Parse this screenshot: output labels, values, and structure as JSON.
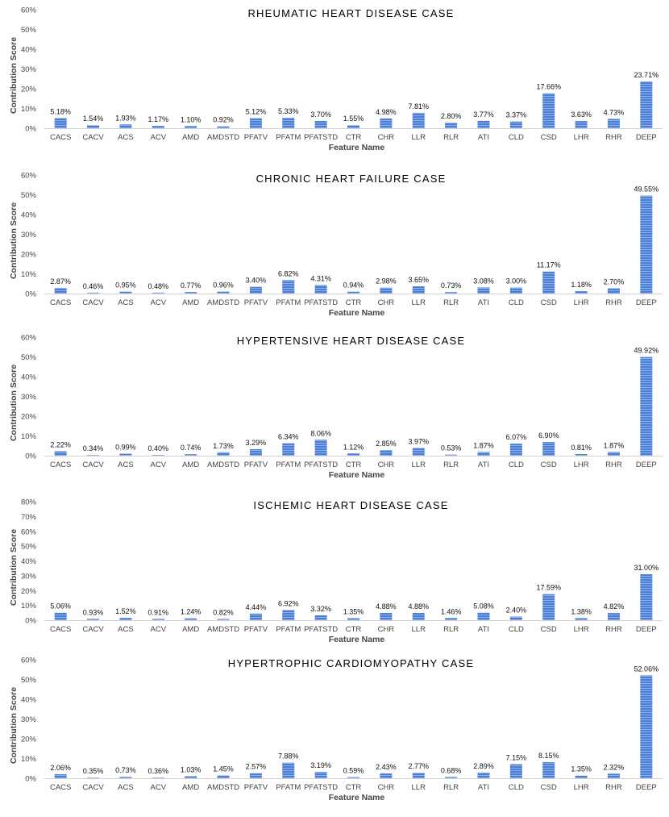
{
  "chart_data": [
    {
      "type": "bar",
      "title": "RHEUMATIC HEART DISEASE CASE",
      "xlabel": "Feature Name",
      "ylabel": "Contribution Score",
      "ylim": [
        0,
        60
      ],
      "yticks": [
        "0%",
        "10%",
        "20%",
        "30%",
        "40%",
        "50%",
        "60%"
      ],
      "categories": [
        "CACS",
        "CACV",
        "ACS",
        "ACV",
        "AMD",
        "AMDSTD",
        "PFATV",
        "PFATM",
        "PFATSTD",
        "CTR",
        "CHR",
        "LLR",
        "RLR",
        "ATI",
        "CLD",
        "CSD",
        "LHR",
        "RHR",
        "DEEP"
      ],
      "values": [
        5.18,
        1.54,
        1.93,
        1.17,
        1.1,
        0.92,
        5.12,
        5.33,
        3.7,
        1.55,
        4.98,
        7.81,
        2.8,
        3.77,
        3.37,
        17.66,
        3.63,
        4.73,
        23.71
      ],
      "labels": [
        "5.18%",
        "1.54%",
        "1.93%",
        "1.17%",
        "1.10%",
        "0.92%",
        "5.12%",
        "5.33%",
        "3.70%",
        "1.55%",
        "4.98%",
        "7.81%",
        "2.80%",
        "3.77%",
        "3.37%",
        "17.66%",
        "3.63%",
        "4.73%",
        "23.71%"
      ],
      "grid": false,
      "bar_color": "#4a7fd4"
    },
    {
      "type": "bar",
      "title": "CHRONIC HEART FAILURE CASE",
      "xlabel": "Feature Name",
      "ylabel": "Contribution Score",
      "ylim": [
        0,
        60
      ],
      "yticks": [
        "0%",
        "10%",
        "20%",
        "30%",
        "40%",
        "50%",
        "60%"
      ],
      "categories": [
        "CACS",
        "CACV",
        "ACS",
        "ACV",
        "AMD",
        "AMDSTD",
        "PFATV",
        "PFATM",
        "PFATSTD",
        "CTR",
        "CHR",
        "LLR",
        "RLR",
        "ATI",
        "CLD",
        "CSD",
        "LHR",
        "RHR",
        "DEEP"
      ],
      "values": [
        2.87,
        0.46,
        0.95,
        0.48,
        0.77,
        0.96,
        3.4,
        6.82,
        4.31,
        0.94,
        2.98,
        3.65,
        0.73,
        3.08,
        3.0,
        11.17,
        1.18,
        2.7,
        49.55
      ],
      "labels": [
        "2.87%",
        "0.46%",
        "0.95%",
        "0.48%",
        "0.77%",
        "0.96%",
        "3.40%",
        "6.82%",
        "4.31%",
        "0.94%",
        "2.98%",
        "3.65%",
        "0.73%",
        "3.08%",
        "3.00%",
        "11.17%",
        "1.18%",
        "2.70%",
        "49.55%"
      ],
      "grid": false,
      "bar_color": "#4a7fd4"
    },
    {
      "type": "bar",
      "title": "HYPERTENSIVE HEART DISEASE CASE",
      "xlabel": "Feature Name",
      "ylabel": "Contribution Score",
      "ylim": [
        0,
        60
      ],
      "yticks": [
        "0%",
        "10%",
        "20%",
        "30%",
        "40%",
        "50%",
        "60%"
      ],
      "categories": [
        "CACS",
        "CACV",
        "ACS",
        "ACV",
        "AMD",
        "AMDSTD",
        "PFATV",
        "PFATM",
        "PFATSTD",
        "CTR",
        "CHR",
        "LLR",
        "RLR",
        "ATI",
        "CLD",
        "CSD",
        "LHR",
        "RHR",
        "DEEP"
      ],
      "values": [
        2.22,
        0.34,
        0.99,
        0.4,
        0.74,
        1.73,
        3.29,
        6.34,
        8.06,
        1.12,
        2.85,
        3.97,
        0.53,
        1.87,
        6.07,
        6.9,
        0.81,
        1.87,
        49.92
      ],
      "labels": [
        "2.22%",
        "0.34%",
        "0.99%",
        "0.40%",
        "0.74%",
        "1.73%",
        "3.29%",
        "6.34%",
        "8.06%",
        "1.12%",
        "2.85%",
        "3.97%",
        "0.53%",
        "1.87%",
        "6.07%",
        "6.90%",
        "0.81%",
        "1.87%",
        "49.92%"
      ],
      "grid": false,
      "bar_color": "#4a7fd4"
    },
    {
      "type": "bar",
      "title": "ISCHEMIC HEART DISEASE CASE",
      "xlabel": "Feature Name",
      "ylabel": "Contribution Score",
      "ylim": [
        0,
        80
      ],
      "yticks": [
        "0%",
        "10%",
        "20%",
        "30%",
        "40%",
        "50%",
        "60%",
        "70%",
        "80%"
      ],
      "categories": [
        "CACS",
        "CACV",
        "ACS",
        "ACV",
        "AMD",
        "AMDSTD",
        "PFATV",
        "PFATM",
        "PFATSTD",
        "CTR",
        "CHR",
        "LLR",
        "RLR",
        "ATI",
        "CLD",
        "CSD",
        "LHR",
        "RHR",
        "DEEP"
      ],
      "values": [
        5.06,
        0.93,
        1.52,
        0.91,
        1.24,
        0.82,
        4.44,
        6.92,
        3.32,
        1.35,
        4.88,
        4.88,
        1.46,
        5.08,
        2.4,
        17.59,
        1.38,
        4.82,
        31.0
      ],
      "labels": [
        "5.06%",
        "0.93%",
        "1.52%",
        "0.91%",
        "1.24%",
        "0.82%",
        "4.44%",
        "6.92%",
        "3.32%",
        "1.35%",
        "4.88%",
        "4.88%",
        "1.46%",
        "5.08%",
        "2.40%",
        "17.59%",
        "1.38%",
        "4.82%",
        "31.00%"
      ],
      "grid": false,
      "bar_color": "#4a7fd4"
    },
    {
      "type": "bar",
      "title": "HYPERTROPHIC CARDIOMYOPATHY CASE",
      "xlabel": "Feature Name",
      "ylabel": "Contribution Score",
      "ylim": [
        0,
        60
      ],
      "yticks": [
        "0%",
        "10%",
        "20%",
        "30%",
        "40%",
        "50%",
        "60%"
      ],
      "categories": [
        "CACS",
        "CACV",
        "ACS",
        "ACV",
        "AMD",
        "AMDSTD",
        "PFATV",
        "PFATM",
        "PFATSTD",
        "CTR",
        "CHR",
        "LLR",
        "RLR",
        "ATI",
        "CLD",
        "CSD",
        "LHR",
        "RHR",
        "DEEP"
      ],
      "values": [
        2.06,
        0.35,
        0.73,
        0.36,
        1.03,
        1.45,
        2.57,
        7.88,
        3.19,
        0.59,
        2.43,
        2.77,
        0.68,
        2.89,
        7.15,
        8.15,
        1.35,
        2.32,
        52.06
      ],
      "labels": [
        "2.06%",
        "0.35%",
        "0.73%",
        "0.36%",
        "1.03%",
        "1.45%",
        "2.57%",
        "7.88%",
        "3.19%",
        "0.59%",
        "2.43%",
        "2.77%",
        "0.68%",
        "2.89%",
        "7.15%",
        "8.15%",
        "1.35%",
        "2.32%",
        "52.06%"
      ],
      "grid": false,
      "bar_color": "#4a7fd4"
    }
  ]
}
